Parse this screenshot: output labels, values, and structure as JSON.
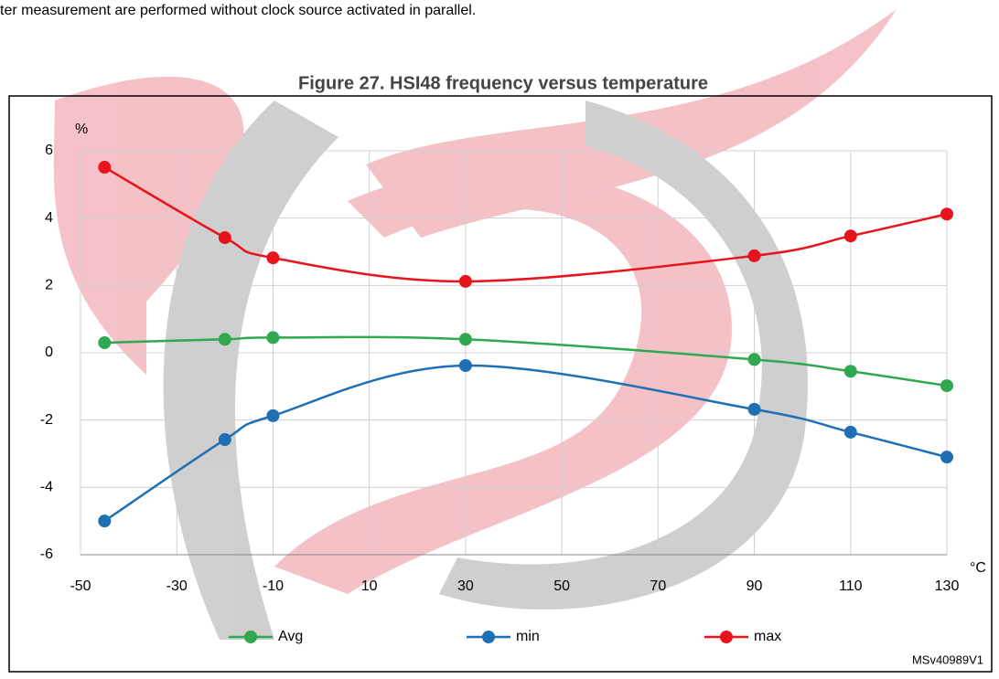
{
  "intro_text": "ter measurement are performed without clock source activated in parallel.",
  "chart_data": {
    "type": "line",
    "title": "Figure 27. HSI48 frequency versus temperature",
    "y_label": "%",
    "x_label": "°C",
    "annotation": "MSv40989V1",
    "x": [
      -45,
      -20,
      -10,
      30,
      90,
      110,
      130
    ],
    "series": [
      {
        "name": "Avg",
        "color": "#2fa84f",
        "values": [
          0.3,
          0.4,
          0.45,
          0.4,
          -0.2,
          -0.55,
          -0.98
        ]
      },
      {
        "name": "min",
        "color": "#1f6fb5",
        "values": [
          -5.0,
          -2.58,
          -1.87,
          -0.38,
          -1.68,
          -2.36,
          -3.1
        ]
      },
      {
        "name": "max",
        "color": "#e8141b",
        "values": [
          5.51,
          3.42,
          2.82,
          2.12,
          2.88,
          3.47,
          4.12
        ]
      }
    ],
    "xlim": [
      -50,
      130
    ],
    "xticks": [
      -50,
      -30,
      -10,
      10,
      30,
      50,
      70,
      90,
      110,
      130
    ],
    "ylim": [
      -6,
      6
    ],
    "yticks": [
      -6,
      -4,
      -2,
      0,
      2,
      4,
      6
    ],
    "grid": true,
    "legend": "bottom",
    "smooth": true
  }
}
